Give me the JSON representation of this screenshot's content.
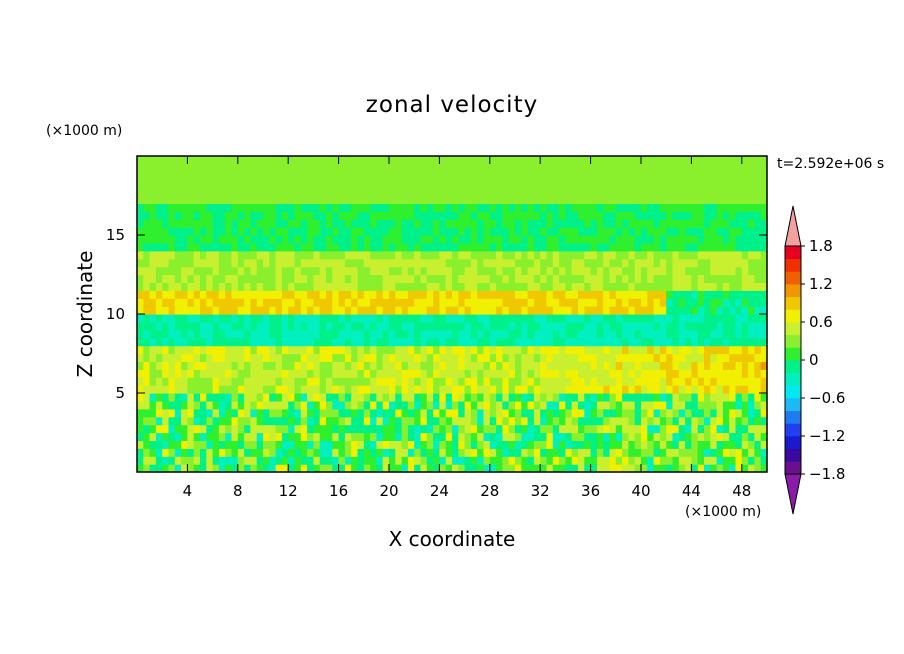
{
  "chart_data": {
    "type": "heatmap",
    "title": "zonal velocity",
    "xlabel": "X coordinate",
    "ylabel": "Z coordinate",
    "x_unit": "(×1000 m)",
    "y_unit": "(×1000 m)",
    "time_label": "t=2.592e+06 s",
    "xlim": [
      0,
      50
    ],
    "ylim": [
      0,
      20
    ],
    "x_ticks": [
      4,
      8,
      12,
      16,
      20,
      24,
      28,
      32,
      36,
      40,
      44,
      48
    ],
    "y_ticks": [
      5,
      10,
      15
    ],
    "colorbar": {
      "levels": [
        -2.0,
        -1.8,
        -1.6,
        -1.4,
        -1.2,
        -1.0,
        -0.8,
        -0.6,
        -0.4,
        -0.2,
        0,
        0.2,
        0.4,
        0.6,
        0.8,
        1.0,
        1.2,
        1.4,
        1.6,
        1.8,
        2.0
      ],
      "tick_labels": [
        "1.8",
        "1.2",
        "0.6",
        "0",
        "−0.6",
        "−1.2",
        "−1.8"
      ],
      "tick_values": [
        1.8,
        1.2,
        0.6,
        0,
        -0.6,
        -1.2,
        -1.8
      ],
      "colors": [
        "#6a0f90",
        "#3a0aa0",
        "#1a1acc",
        "#1f3ff0",
        "#1f7bf0",
        "#1eb8f5",
        "#00e8f0",
        "#00f0c0",
        "#00f08a",
        "#2ef02e",
        "#8af02e",
        "#c8f02e",
        "#f0f000",
        "#f0c800",
        "#f09600",
        "#f06000",
        "#f03000",
        "#e8001e"
      ],
      "under_color": "#8a1aa8",
      "over_color": "#f2a0a0",
      "extend": "both"
    },
    "field_bands": [
      {
        "z_range": [
          17,
          20
        ],
        "value": 0.1
      },
      {
        "z_range": [
          14,
          17
        ],
        "value": -0.2
      },
      {
        "z_range": [
          11.5,
          14
        ],
        "value": 0.2
      },
      {
        "z_range": [
          10,
          11.5
        ],
        "value": 0.6
      },
      {
        "z_range": [
          8,
          10
        ],
        "value": -0.4
      },
      {
        "z_range": [
          5,
          8
        ],
        "value": 0.3
      },
      {
        "z_range": [
          0,
          5
        ],
        "value": 0.0
      }
    ]
  }
}
